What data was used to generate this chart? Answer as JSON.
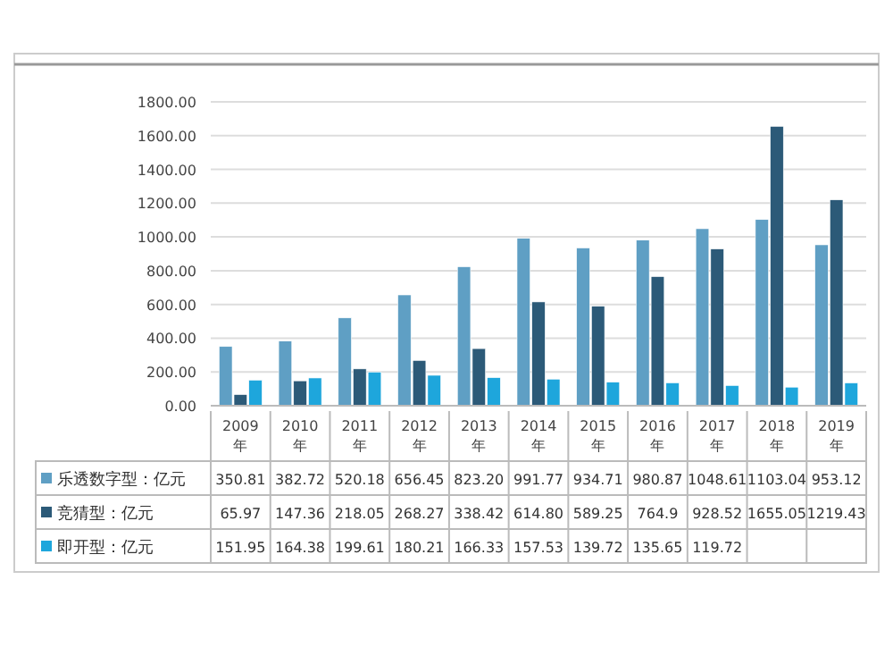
{
  "chart_data": {
    "type": "bar",
    "categories": [
      "2009年",
      "2010年",
      "2011年",
      "2012年",
      "2013年",
      "2014年",
      "2015年",
      "2016年",
      "2017年",
      "2018年",
      "2019年"
    ],
    "series": [
      {
        "name": "乐透数字型：亿元",
        "color": "#5f9fc4",
        "values": [
          350.81,
          382.72,
          520.18,
          656.45,
          823.2,
          991.77,
          934.71,
          980.87,
          1048.61,
          1103.04,
          953.12
        ],
        "value_labels": [
          "350.81",
          "382.72",
          "520.18",
          "656.45",
          "823.20",
          "991.77",
          "934.71",
          "980.87",
          "1048.61",
          "1103.04",
          "953.12"
        ]
      },
      {
        "name": "竞猜型：亿元",
        "color": "#2c5a78",
        "values": [
          65.97,
          147.36,
          218.05,
          268.27,
          338.42,
          614.8,
          589.25,
          764.9,
          928.52,
          1655.05,
          1219.43
        ],
        "value_labels": [
          "65.97",
          "147.36",
          "218.05",
          "268.27",
          "338.42",
          "614.80",
          "589.25",
          "764.9",
          "928.52",
          "1655.05",
          "1219.43"
        ]
      },
      {
        "name": "即开型：亿元",
        "color": "#1ea6dc",
        "values": [
          151.95,
          164.38,
          199.61,
          180.21,
          166.33,
          157.53,
          139.72,
          135.65,
          119.72,
          110,
          135
        ],
        "value_labels": [
          "151.95",
          "164.38",
          "199.61",
          "180.21",
          "166.33",
          "157.53",
          "139.72",
          "135.65",
          "119.72",
          null,
          null
        ]
      }
    ],
    "ylim": [
      0,
      1800
    ],
    "yticks": [
      {
        "value": 0,
        "label": "0.00"
      },
      {
        "value": 200,
        "label": "200.00"
      },
      {
        "value": 400,
        "label": "400.00"
      },
      {
        "value": 600,
        "label": "600.00"
      },
      {
        "value": 800,
        "label": "800.00"
      },
      {
        "value": 1000,
        "label": "1000.00"
      },
      {
        "value": 1200,
        "label": "1200.00"
      },
      {
        "value": 1400,
        "label": "1400.00"
      },
      {
        "value": 1600,
        "label": "1600.00"
      },
      {
        "value": 1800,
        "label": "1800.00"
      }
    ],
    "grid": "y",
    "legend": "bottom"
  }
}
